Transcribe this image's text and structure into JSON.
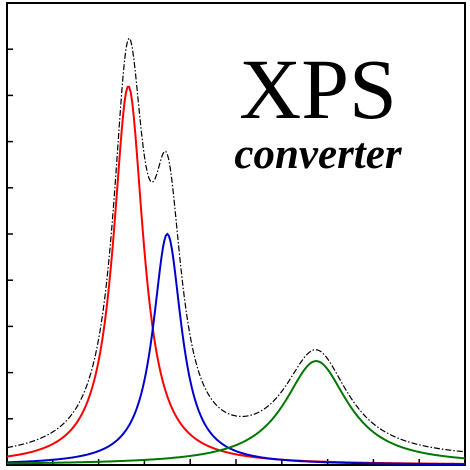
{
  "logo": {
    "title": "XPS",
    "subtitle": "converter"
  },
  "colors": {
    "frame": "#000000",
    "envelope": "#000000",
    "peak_1": "#ff0000",
    "peak_2": "#0000cc",
    "peak_3": "#007700"
  },
  "spectrum": {
    "peaks": [
      {
        "center": 0.265,
        "amplitude": 0.82,
        "width": 0.04,
        "color_key": "peak_1"
      },
      {
        "center": 0.35,
        "amplitude": 0.5,
        "width": 0.038,
        "color_key": "peak_2"
      },
      {
        "center": 0.675,
        "amplitude": 0.225,
        "width": 0.085,
        "color_key": "peak_3"
      }
    ],
    "tick_count": 9
  }
}
